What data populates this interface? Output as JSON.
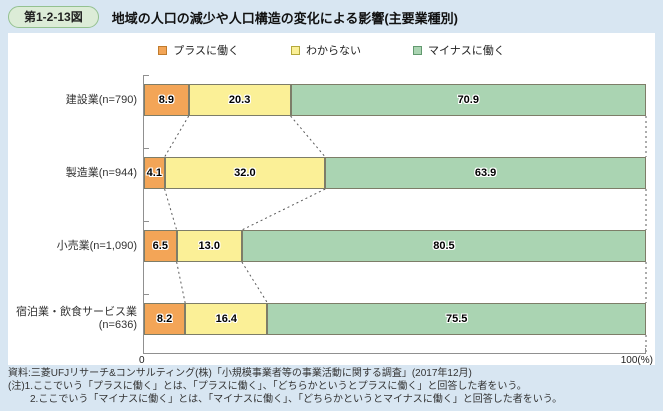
{
  "header": {
    "fig_badge": "第1-2-13図",
    "title": "地域の人口の減少や人口構造の変化による影響(主要業種別)"
  },
  "chart_data": {
    "type": "bar",
    "orientation": "horizontal",
    "stacked": true,
    "percent_total": 100,
    "xlim": [
      0,
      100
    ],
    "axis_min_label": "0",
    "axis_max_label": "100(%)",
    "legend_position": "top-center",
    "series_names": [
      "プラスに働く",
      "わからない",
      "マイナスに働く"
    ],
    "series_colors": [
      "#f3a557",
      "#fbf097",
      "#aad4b2"
    ],
    "series_border_colors": [
      "#c07b2d",
      "#b5a93c",
      "#62996f"
    ],
    "rows": [
      {
        "label_lines": [
          "建設業(n=790)"
        ],
        "values": [
          8.9,
          20.3,
          70.9
        ],
        "value_labels": [
          "8.9",
          "20.3",
          "70.9"
        ]
      },
      {
        "label_lines": [
          "製造業(n=944)"
        ],
        "values": [
          4.1,
          32.0,
          63.9
        ],
        "value_labels": [
          "4.1",
          "32.0",
          "63.9"
        ]
      },
      {
        "label_lines": [
          "小売業(n=1,090)"
        ],
        "values": [
          6.5,
          13.0,
          80.5
        ],
        "value_labels": [
          "6.5",
          "13.0",
          "80.5"
        ]
      },
      {
        "label_lines": [
          "宿泊業・飲食サービス業",
          "(n=636)"
        ],
        "values": [
          8.2,
          16.4,
          75.5
        ],
        "value_labels": [
          "8.2",
          "16.4",
          "75.5"
        ]
      }
    ]
  },
  "footer": {
    "source": "資料:三菱UFJリサーチ&コンサルティング(株)「小規模事業者等の事業活動に関する調査」(2017年12月)",
    "note1": "(注)1.ここでいう「プラスに働く」とは、「プラスに働く」、「どちらかというとプラスに働く」と回答した者をいう。",
    "note2": "2.ここでいう「マイナスに働く」とは、「マイナスに働く」、「どちらかというとマイナスに働く」と回答した者をいう。"
  }
}
